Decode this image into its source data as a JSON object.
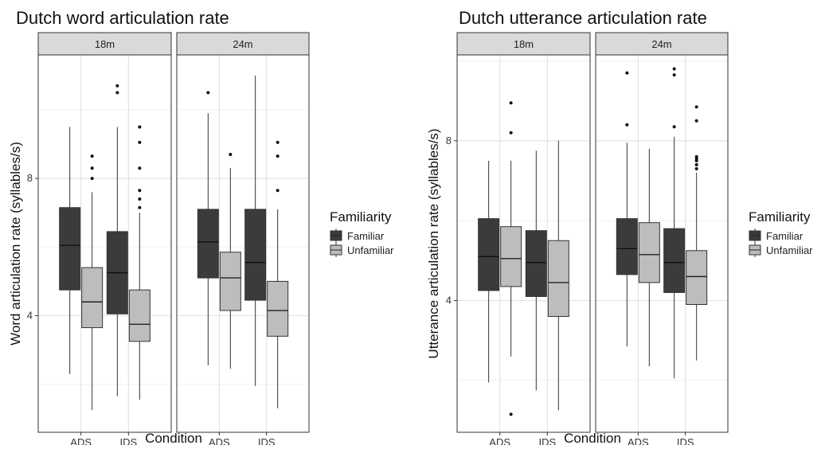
{
  "chart_data": [
    {
      "type": "boxplot",
      "title": "Dutch word articulation rate",
      "xlabel": "Condition",
      "ylabel": "Word articulation rate (syllables/s)",
      "y_ticks": [
        4,
        8
      ],
      "ylim": [
        0.6,
        11.6
      ],
      "grid": true,
      "facets": [
        "18m",
        "24m"
      ],
      "categories": [
        "ADS",
        "IDS"
      ],
      "legend": {
        "title": "Familiarity",
        "entries": [
          "Familiar",
          "Unfamiliar"
        ],
        "position": "right"
      },
      "colors": {
        "Familiar": "#3b3b3b",
        "Unfamiliar": "#bdbdbd"
      },
      "boxes": [
        {
          "facet": "18m",
          "condition": "ADS",
          "group": "Familiar",
          "min": 2.3,
          "q1": 4.75,
          "median": 6.05,
          "q3": 7.15,
          "max": 9.5,
          "outliers": []
        },
        {
          "facet": "18m",
          "condition": "ADS",
          "group": "Unfamiliar",
          "min": 1.25,
          "q1": 3.65,
          "median": 4.4,
          "q3": 5.4,
          "max": 7.6,
          "outliers": [
            8.0,
            8.3,
            8.65
          ]
        },
        {
          "facet": "18m",
          "condition": "IDS",
          "group": "Familiar",
          "min": 1.65,
          "q1": 4.05,
          "median": 5.25,
          "q3": 6.45,
          "max": 9.5,
          "outliers": [
            10.5,
            10.7
          ]
        },
        {
          "facet": "18m",
          "condition": "IDS",
          "group": "Unfamiliar",
          "min": 1.55,
          "q1": 3.25,
          "median": 3.75,
          "q3": 4.75,
          "max": 7.0,
          "outliers": [
            7.15,
            7.4,
            7.65,
            8.3,
            9.05,
            9.5
          ]
        },
        {
          "facet": "24m",
          "condition": "ADS",
          "group": "Familiar",
          "min": 2.55,
          "q1": 5.1,
          "median": 6.15,
          "q3": 7.1,
          "max": 9.9,
          "outliers": [
            10.5
          ]
        },
        {
          "facet": "24m",
          "condition": "ADS",
          "group": "Unfamiliar",
          "min": 2.45,
          "q1": 4.15,
          "median": 5.1,
          "q3": 5.85,
          "max": 8.3,
          "outliers": [
            8.7
          ]
        },
        {
          "facet": "24m",
          "condition": "IDS",
          "group": "Familiar",
          "min": 1.95,
          "q1": 4.45,
          "median": 5.55,
          "q3": 7.1,
          "max": 11.0,
          "outliers": []
        },
        {
          "facet": "24m",
          "condition": "IDS",
          "group": "Unfamiliar",
          "min": 1.3,
          "q1": 3.4,
          "median": 4.15,
          "q3": 5.0,
          "max": 7.1,
          "outliers": [
            7.65,
            8.65,
            9.05
          ]
        }
      ]
    },
    {
      "type": "boxplot",
      "title": "Dutch utterance articulation rate",
      "xlabel": "Condition",
      "ylabel": "Utterance articulation rate (syllables/s)",
      "y_ticks": [
        4,
        8
      ],
      "ylim": [
        0.7,
        10.15
      ],
      "grid": true,
      "facets": [
        "18m",
        "24m"
      ],
      "categories": [
        "ADS",
        "IDS"
      ],
      "legend": {
        "title": "Familiarity",
        "entries": [
          "Familiar",
          "Unfamiliar"
        ],
        "position": "right"
      },
      "colors": {
        "Familiar": "#3b3b3b",
        "Unfamiliar": "#bdbdbd"
      },
      "boxes": [
        {
          "facet": "18m",
          "condition": "ADS",
          "group": "Familiar",
          "min": 1.95,
          "q1": 4.25,
          "median": 5.1,
          "q3": 6.05,
          "max": 7.5,
          "outliers": []
        },
        {
          "facet": "18m",
          "condition": "ADS",
          "group": "Unfamiliar",
          "min": 2.6,
          "q1": 4.35,
          "median": 5.05,
          "q3": 5.85,
          "max": 7.5,
          "outliers": [
            1.15,
            8.2,
            8.95
          ]
        },
        {
          "facet": "18m",
          "condition": "IDS",
          "group": "Familiar",
          "min": 1.75,
          "q1": 4.1,
          "median": 4.95,
          "q3": 5.75,
          "max": 7.75,
          "outliers": []
        },
        {
          "facet": "18m",
          "condition": "IDS",
          "group": "Unfamiliar",
          "min": 1.25,
          "q1": 3.6,
          "median": 4.45,
          "q3": 5.5,
          "max": 8.0,
          "outliers": []
        },
        {
          "facet": "24m",
          "condition": "ADS",
          "group": "Familiar",
          "min": 2.85,
          "q1": 4.65,
          "median": 5.3,
          "q3": 6.05,
          "max": 7.95,
          "outliers": [
            8.4,
            9.7
          ]
        },
        {
          "facet": "24m",
          "condition": "ADS",
          "group": "Unfamiliar",
          "min": 2.35,
          "q1": 4.45,
          "median": 5.15,
          "q3": 5.95,
          "max": 7.8,
          "outliers": []
        },
        {
          "facet": "24m",
          "condition": "IDS",
          "group": "Familiar",
          "min": 2.05,
          "q1": 4.2,
          "median": 4.95,
          "q3": 5.8,
          "max": 8.1,
          "outliers": [
            8.35,
            9.65,
            9.8
          ]
        },
        {
          "facet": "24m",
          "condition": "IDS",
          "group": "Unfamiliar",
          "min": 2.5,
          "q1": 3.9,
          "median": 4.6,
          "q3": 5.25,
          "max": 7.2,
          "outliers": [
            7.3,
            7.4,
            7.5,
            7.55,
            7.6,
            8.5,
            8.85
          ]
        }
      ]
    }
  ]
}
